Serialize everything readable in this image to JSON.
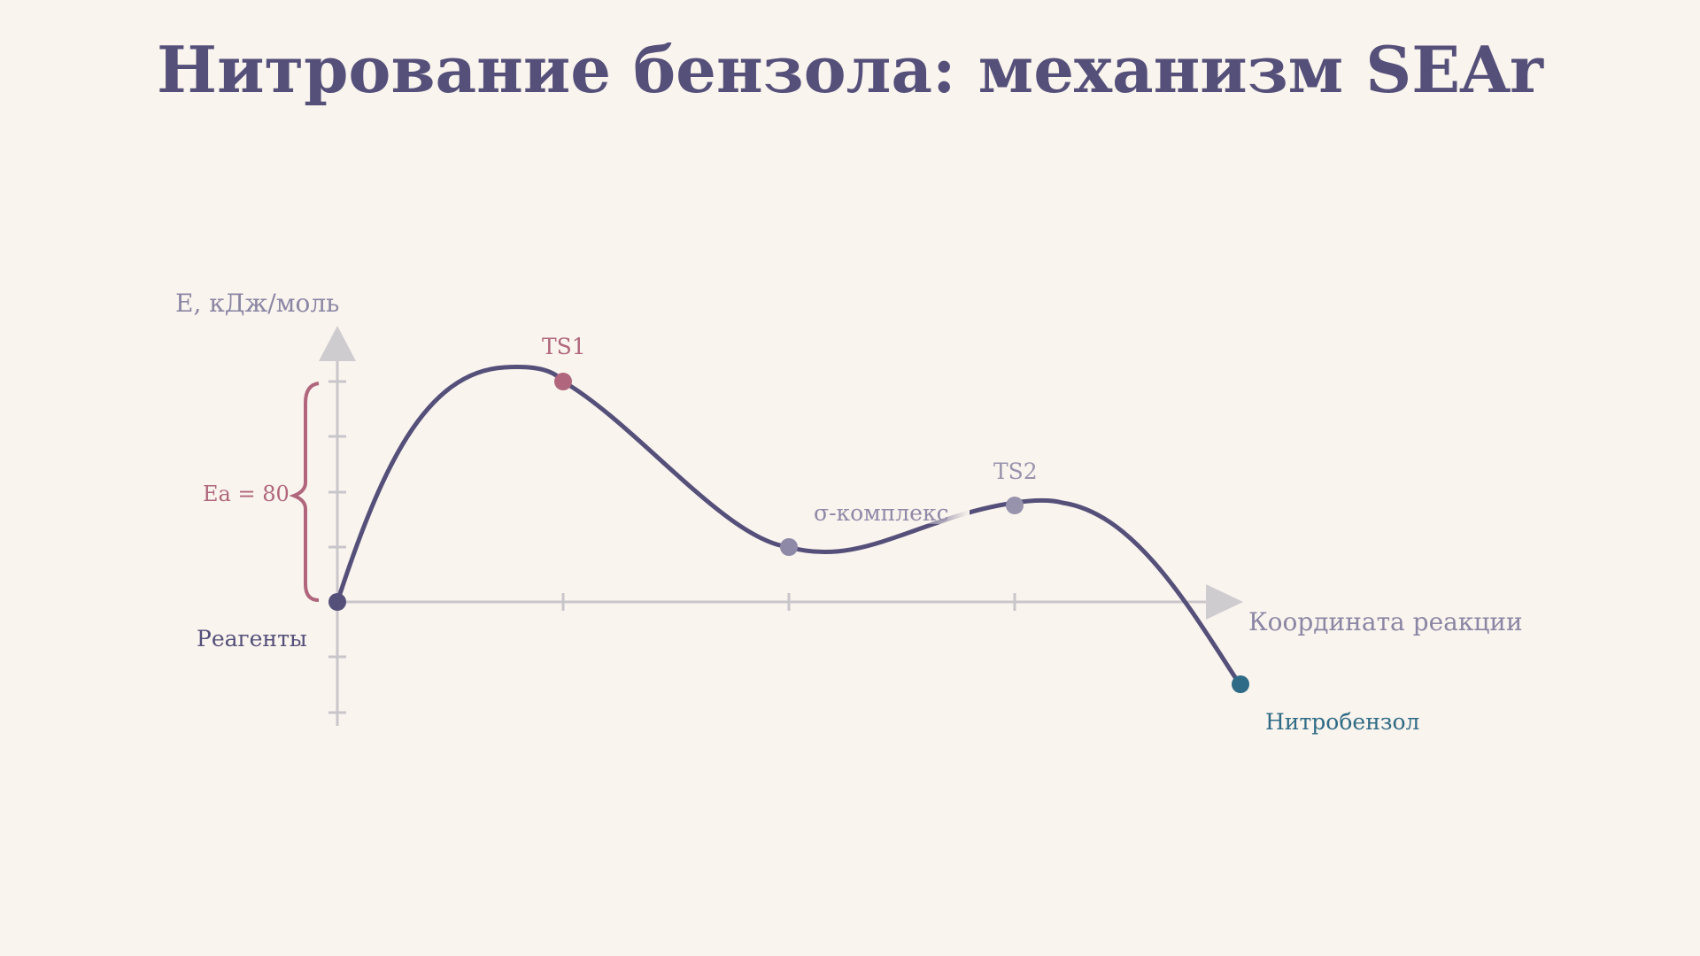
{
  "title": "Нитрование бензола: механизм SEAr",
  "axes": {
    "y_label": "E, кДж/моль",
    "x_label": "Координата реакции"
  },
  "points": {
    "reactants": {
      "label": "Реагенты",
      "energy": 0
    },
    "ts1": {
      "label": "TS1",
      "energy": 80
    },
    "sigma": {
      "label": "σ-комплекс",
      "energy": 20
    },
    "ts2": {
      "label": "TS2",
      "energy": 35
    },
    "product": {
      "label": "Нитробензол",
      "energy": -30
    }
  },
  "activation": {
    "label": "Ea = 80"
  },
  "colors": {
    "curve": "#55507a",
    "ts1": "#b0667c",
    "sigma": "#8f89a8",
    "ts2": "#9893ad",
    "product": "#2f6b86",
    "axis": "#c9c6cb",
    "label_muted": "#8a86a4"
  }
}
